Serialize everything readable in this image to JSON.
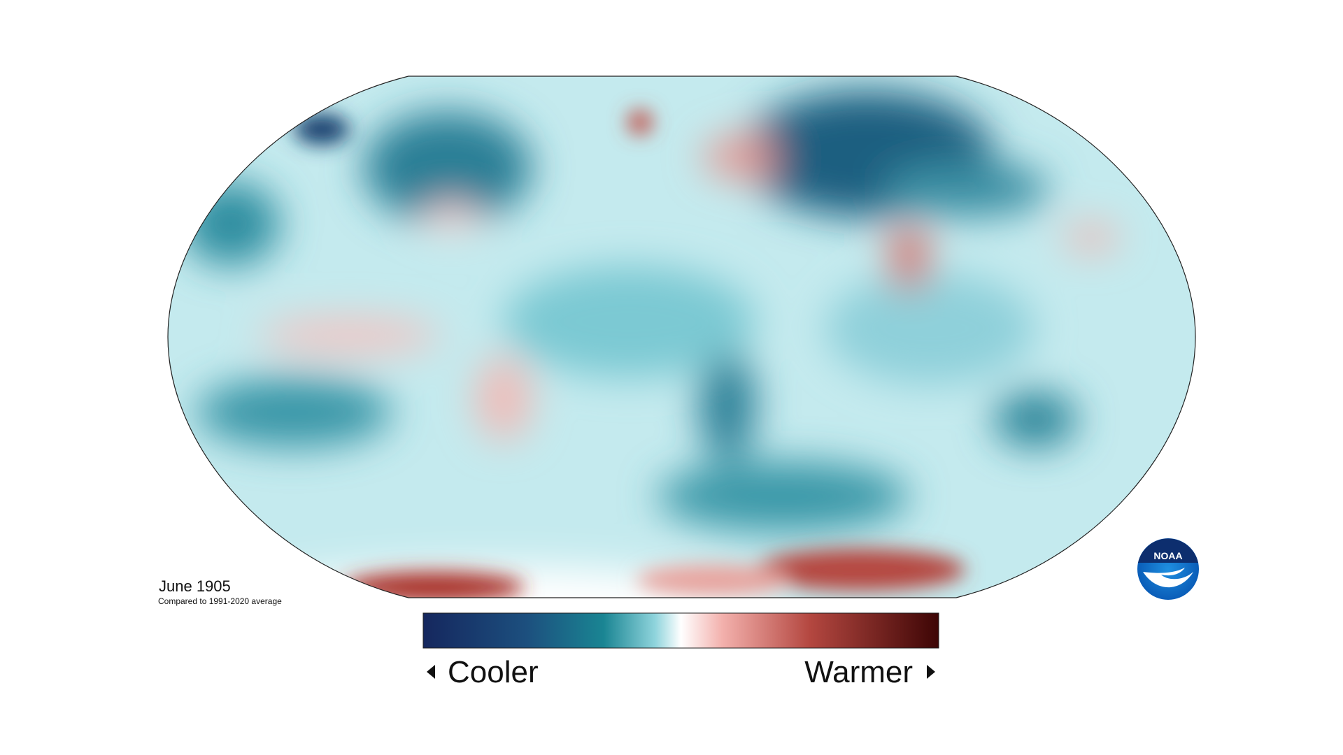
{
  "title": "June 1905",
  "subtitle": "Compared to 1991-2020 average",
  "legend": {
    "low_label": "Cooler",
    "high_label": "Warmer"
  },
  "logo": "NOAA"
}
